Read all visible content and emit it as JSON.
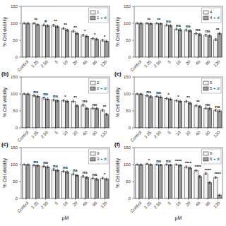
{
  "chart_data": [
    {
      "type": "bar",
      "categories": [
        "Control",
        "1.25",
        "2.50",
        "5",
        "10",
        "20",
        "40",
        "80",
        "120"
      ],
      "series": [
        {
          "name": "1",
          "color": "#f5f5f5",
          "values": [
            100,
            100,
            95,
            94,
            85,
            77,
            65,
            55,
            50
          ],
          "errors": [
            2,
            2,
            3,
            3,
            3,
            3,
            3,
            3,
            3
          ]
        },
        {
          "name": "1 + d",
          "color": "#999999",
          "values": [
            100,
            96,
            93,
            90,
            80,
            70,
            62,
            53,
            47
          ],
          "errors": [
            2,
            2,
            3,
            3,
            3,
            3,
            3,
            3,
            3
          ]
        }
      ],
      "annotations": [
        {
          "category": "1.25",
          "text": "**"
        },
        {
          "category": "2.50",
          "text": "#"
        },
        {
          "category": "5",
          "text": "**"
        },
        {
          "category": "10",
          "text": "**"
        },
        {
          "category": "20",
          "text": "**"
        },
        {
          "category": "40",
          "text": "*"
        },
        {
          "category": "80",
          "text": "*"
        },
        {
          "category": "120",
          "text": "*"
        }
      ],
      "ylabel": "% Cell viability",
      "ylim": [
        0,
        150
      ],
      "yticks": [
        0,
        50,
        100,
        150
      ],
      "legend": "upper right"
    },
    {
      "type": "bar",
      "categories": [
        "Control",
        "1.25",
        "2.50",
        "5",
        "10",
        "20",
        "40",
        "80",
        "120"
      ],
      "series": [
        {
          "name": "4",
          "color": "#f5f5f5",
          "values": [
            100,
            100,
            100,
            95,
            83,
            80,
            70,
            65,
            52
          ],
          "errors": [
            2,
            2,
            2,
            3,
            3,
            3,
            3,
            3,
            3
          ]
        },
        {
          "name": "4 + d",
          "color": "#999999",
          "values": [
            100,
            99,
            99,
            93,
            81,
            78,
            67,
            63,
            70
          ],
          "errors": [
            2,
            2,
            2,
            3,
            3,
            3,
            3,
            3,
            3
          ]
        }
      ],
      "annotations": [
        {
          "category": "1.25",
          "text": "**"
        },
        {
          "category": "2.50",
          "text": "**"
        },
        {
          "category": "5",
          "text": "ns"
        },
        {
          "category": "10",
          "text": "ns"
        },
        {
          "category": "20",
          "text": "ns"
        },
        {
          "category": "40",
          "text": "ns"
        },
        {
          "category": "80",
          "text": "ns"
        },
        {
          "category": "120",
          "text": "**"
        }
      ],
      "ylabel": "% Cell viability",
      "ylim": [
        0,
        150
      ],
      "yticks": [
        0,
        50,
        100,
        150
      ],
      "legend": "upper right"
    },
    {
      "type": "bar",
      "title": "(b)",
      "categories": [
        "Control",
        "1.25",
        "2.50",
        "5",
        "10",
        "20",
        "40",
        "80",
        "120"
      ],
      "series": [
        {
          "name": "2",
          "color": "#f5f5f5",
          "values": [
            100,
            95,
            88,
            82,
            80,
            78,
            67,
            58,
            52
          ],
          "errors": [
            2,
            3,
            3,
            3,
            3,
            3,
            3,
            3,
            3
          ]
        },
        {
          "name": "2 + d",
          "color": "#999999",
          "values": [
            100,
            93,
            85,
            80,
            78,
            65,
            57,
            57,
            40
          ],
          "errors": [
            2,
            3,
            3,
            3,
            3,
            3,
            3,
            3,
            3
          ]
        }
      ],
      "annotations": [
        {
          "category": "1.25",
          "text": "ns"
        },
        {
          "category": "2.50",
          "text": "ns"
        },
        {
          "category": "5",
          "text": "ns"
        },
        {
          "category": "10",
          "text": "*"
        },
        {
          "category": "20",
          "text": "**"
        },
        {
          "category": "40",
          "text": "ns"
        },
        {
          "category": "80",
          "text": "ns"
        },
        {
          "category": "120",
          "text": "**"
        }
      ],
      "ylabel": "% Cell viability",
      "ylim": [
        0,
        150
      ],
      "yticks": [
        0,
        50,
        100,
        150
      ],
      "legend": "upper right"
    },
    {
      "type": "bar",
      "title": "(e)",
      "categories": [
        "Control",
        "1.25",
        "2.50",
        "5",
        "10",
        "20",
        "40",
        "80",
        "120"
      ],
      "series": [
        {
          "name": "5",
          "color": "#f5f5f5",
          "values": [
            100,
            95,
            93,
            87,
            80,
            78,
            65,
            58,
            52
          ],
          "errors": [
            2,
            3,
            3,
            3,
            3,
            3,
            3,
            3,
            3
          ]
        },
        {
          "name": "5 + d",
          "color": "#999999",
          "values": [
            100,
            92,
            91,
            85,
            78,
            73,
            63,
            57,
            50
          ],
          "errors": [
            2,
            3,
            3,
            3,
            3,
            3,
            3,
            3,
            3
          ]
        }
      ],
      "annotations": [
        {
          "category": "1.25",
          "text": "ns"
        },
        {
          "category": "2.50",
          "text": "ns"
        },
        {
          "category": "5",
          "text": "*"
        },
        {
          "category": "10",
          "text": "*"
        },
        {
          "category": "20",
          "text": "**"
        },
        {
          "category": "40",
          "text": "**"
        },
        {
          "category": "80",
          "text": "ns"
        },
        {
          "category": "120",
          "text": "ns"
        }
      ],
      "ylabel": "% Cell viability",
      "ylim": [
        0,
        150
      ],
      "yticks": [
        0,
        50,
        100,
        150
      ],
      "legend": "upper right"
    },
    {
      "type": "bar",
      "title": "(c)",
      "categories": [
        "Control",
        "1.25",
        "2.50",
        "5",
        "10",
        "20",
        "40",
        "80",
        "120"
      ],
      "series": [
        {
          "name": "3",
          "color": "#f5f5f5",
          "values": [
            100,
            98,
            95,
            85,
            80,
            72,
            65,
            60,
            60
          ],
          "errors": [
            2,
            2,
            3,
            3,
            3,
            3,
            3,
            3,
            3
          ]
        },
        {
          "name": "3 + d",
          "color": "#999999",
          "values": [
            100,
            97,
            93,
            83,
            78,
            68,
            62,
            57,
            57
          ],
          "errors": [
            2,
            2,
            3,
            3,
            3,
            3,
            3,
            3,
            3
          ]
        }
      ],
      "annotations": [
        {
          "category": "1.25",
          "text": "ns"
        },
        {
          "category": "2.50",
          "text": "ns"
        },
        {
          "category": "5",
          "text": "ns"
        },
        {
          "category": "10",
          "text": "ns"
        },
        {
          "category": "20",
          "text": "ns"
        },
        {
          "category": "40",
          "text": "ns"
        },
        {
          "category": "80",
          "text": "ns"
        },
        {
          "category": "120",
          "text": "*"
        }
      ],
      "xlabel": "μM",
      "ylabel": "% Cell viability",
      "ylim": [
        0,
        150
      ],
      "yticks": [
        0,
        50,
        100,
        150
      ],
      "legend": "upper right"
    },
    {
      "type": "bar",
      "title": "(f)",
      "categories": [
        "Control",
        "1.25",
        "2.50",
        "5",
        "10",
        "20",
        "40",
        "80",
        "120"
      ],
      "series": [
        {
          "name": "6",
          "color": "#f5f5f5",
          "values": [
            100,
            102,
            100,
            100,
            100,
            93,
            82,
            73,
            62
          ],
          "errors": [
            2,
            2,
            2,
            2,
            2,
            3,
            3,
            3,
            3
          ]
        },
        {
          "name": "6 + d",
          "color": "#999999",
          "values": [
            100,
            100,
            99,
            99,
            98,
            90,
            65,
            47,
            10
          ],
          "errors": [
            2,
            2,
            2,
            2,
            2,
            3,
            3,
            3,
            2
          ]
        }
      ],
      "annotations": [
        {
          "category": "1.25",
          "text": "*"
        },
        {
          "category": "2.50",
          "text": "ns"
        },
        {
          "category": "5",
          "text": "ns"
        },
        {
          "category": "10",
          "text": "****"
        },
        {
          "category": "20",
          "text": "****"
        },
        {
          "category": "40",
          "text": "****"
        },
        {
          "category": "80",
          "text": "****"
        },
        {
          "category": "120",
          "text": "****"
        }
      ],
      "xlabel": "μM",
      "ylabel": "% Cell viability",
      "ylim": [
        0,
        150
      ],
      "yticks": [
        0,
        50,
        100,
        150
      ],
      "legend": "upper right"
    }
  ]
}
